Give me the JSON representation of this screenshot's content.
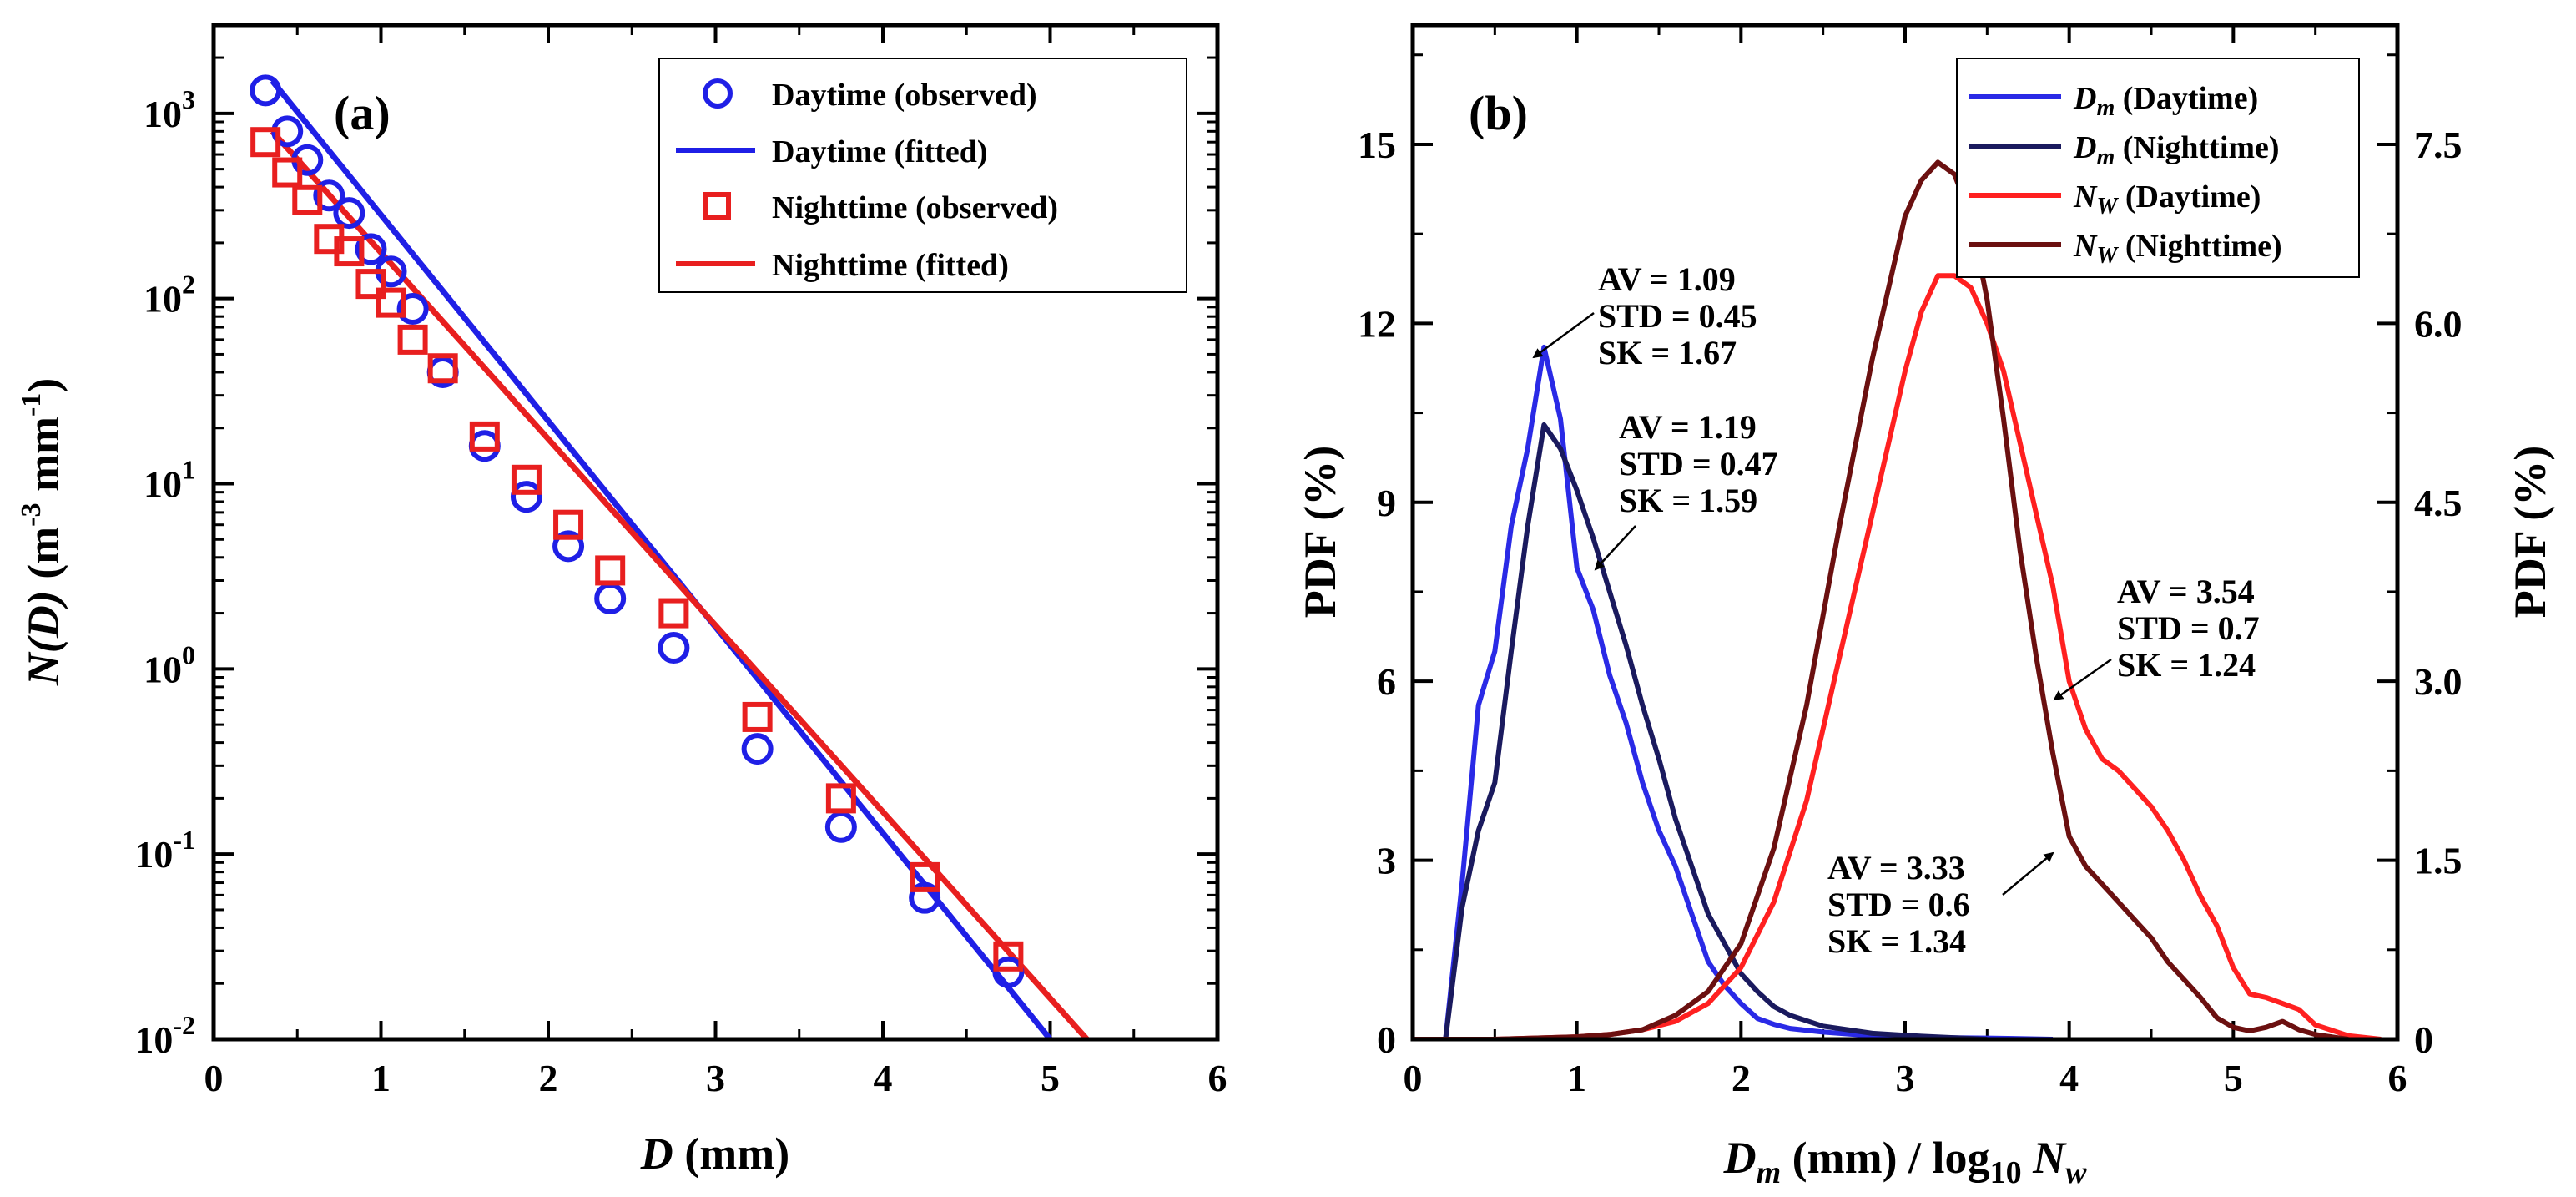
{
  "chart_data": [
    {
      "type": "scatter",
      "panel_label": "(a)",
      "xlabel_italic": "D",
      "xlabel_rest": " (mm)",
      "ylabel_italic": "N(D)",
      "ylabel_rest": " (m",
      "ylabel_sup1": "-3",
      "ylabel_mid": " mm",
      "ylabel_sup2": "-1",
      "ylabel_end": ")",
      "xlim": [
        0,
        6
      ],
      "ylim": [
        0.01,
        3000
      ],
      "yscale": "log",
      "x_ticks": [
        0,
        1,
        2,
        3,
        4,
        5,
        6
      ],
      "y_ticks": [
        {
          "base": "10",
          "exp": "3",
          "value": 1000
        },
        {
          "base": "10",
          "exp": "2",
          "value": 100
        },
        {
          "base": "10",
          "exp": "1",
          "value": 10
        },
        {
          "base": "10",
          "exp": "0",
          "value": 1
        },
        {
          "base": "10",
          "exp": "-1",
          "value": 0.1
        },
        {
          "base": "10",
          "exp": "-2",
          "value": 0.01
        }
      ],
      "legend_position": "top-right",
      "series": [
        {
          "name": "Daytime (observed)",
          "marker": "circle",
          "color": "#1f1fe6",
          "x": [
            0.31,
            0.44,
            0.56,
            0.69,
            0.81,
            0.94,
            1.06,
            1.19,
            1.37,
            1.62,
            1.87,
            2.12,
            2.37,
            2.75,
            3.25,
            3.75,
            4.25,
            4.75
          ],
          "y": [
            1330,
            800,
            560,
            360,
            290,
            185,
            140,
            88,
            40,
            16,
            8.5,
            4.6,
            2.4,
            1.3,
            0.37,
            0.14,
            0.058,
            0.023
          ]
        },
        {
          "name": "Daytime (fitted)",
          "marker": "line",
          "color": "#1f1fe6",
          "x": [
            0.35,
            5.0
          ],
          "y": [
            1500,
            0.01
          ]
        },
        {
          "name": "Nighttime (observed)",
          "marker": "square",
          "color": "#e81f1f",
          "x": [
            0.31,
            0.44,
            0.56,
            0.69,
            0.81,
            0.94,
            1.06,
            1.19,
            1.37,
            1.62,
            1.87,
            2.12,
            2.37,
            2.75,
            3.25,
            3.75,
            4.25,
            4.75
          ],
          "y": [
            700,
            480,
            340,
            210,
            180,
            120,
            95,
            60,
            42,
            18,
            10.5,
            6,
            3.4,
            2.0,
            0.55,
            0.2,
            0.075,
            0.028
          ]
        },
        {
          "name": "Nighttime (fitted)",
          "marker": "line",
          "color": "#e81f1f",
          "x": [
            0.35,
            5.22
          ],
          "y": [
            800,
            0.01
          ]
        }
      ]
    },
    {
      "type": "line",
      "panel_label": "(b)",
      "xlabel_italic": "D",
      "xlabel_sub": "m",
      "xlabel_rest": " (mm) / log",
      "xlabel_sub2": "10",
      "xlabel_italic2": " N",
      "xlabel_sub3": "w",
      "ylabel_left": "PDF (%)",
      "ylabel_right": "PDF (%)",
      "xlim": [
        0,
        6
      ],
      "ylim_left": [
        0,
        17
      ],
      "ylim_right": [
        0,
        8.5
      ],
      "x_ticks": [
        0,
        1,
        2,
        3,
        4,
        5,
        6
      ],
      "y_ticks_left": [
        0,
        3,
        6,
        9,
        12,
        15
      ],
      "y_ticks_right": [
        "0",
        "1.5",
        "3.0",
        "4.5",
        "6.0",
        "7.5"
      ],
      "legend_position": "top-right",
      "series": [
        {
          "name_italic": "D",
          "name_sub": "m",
          "name_rest": " (Daytime)",
          "color": "#2a2ae6",
          "axis": "left",
          "x": [
            0.0,
            0.2,
            0.3,
            0.4,
            0.5,
            0.6,
            0.7,
            0.8,
            0.9,
            1.0,
            1.1,
            1.2,
            1.3,
            1.4,
            1.5,
            1.6,
            1.7,
            1.8,
            1.9,
            2.0,
            2.1,
            2.2,
            2.3,
            2.5,
            2.8,
            3.1,
            3.5,
            3.9
          ],
          "y": [
            0,
            0,
            2.6,
            5.6,
            6.5,
            8.6,
            9.9,
            11.6,
            10.4,
            7.9,
            7.2,
            6.1,
            5.3,
            4.3,
            3.5,
            2.9,
            2.1,
            1.3,
            0.9,
            0.6,
            0.35,
            0.25,
            0.18,
            0.12,
            0.06,
            0.03,
            0.02,
            0.0
          ]
        },
        {
          "name_italic": "D",
          "name_sub": "m",
          "name_rest": " (Nighttime)",
          "color": "#1a1a5e",
          "axis": "left",
          "x": [
            0.0,
            0.2,
            0.3,
            0.4,
            0.5,
            0.6,
            0.7,
            0.8,
            0.9,
            1.0,
            1.1,
            1.2,
            1.3,
            1.4,
            1.5,
            1.6,
            1.7,
            1.8,
            1.9,
            2.0,
            2.1,
            2.2,
            2.3,
            2.5,
            2.8,
            3.1,
            3.5
          ],
          "y": [
            0,
            0,
            2.2,
            3.5,
            4.3,
            6.5,
            8.6,
            10.3,
            9.9,
            9.2,
            8.4,
            7.5,
            6.6,
            5.6,
            4.7,
            3.7,
            2.9,
            2.1,
            1.6,
            1.1,
            0.8,
            0.55,
            0.4,
            0.22,
            0.1,
            0.05,
            0.0
          ]
        },
        {
          "name_italic": "N",
          "name_sub": "W",
          "name_rest": " (Daytime)",
          "color": "#ff2020",
          "axis": "right",
          "x": [
            0.0,
            0.5,
            1.0,
            1.2,
            1.4,
            1.6,
            1.8,
            2.0,
            2.2,
            2.4,
            2.6,
            2.8,
            3.0,
            3.1,
            3.2,
            3.3,
            3.4,
            3.5,
            3.6,
            3.7,
            3.8,
            3.9,
            4.0,
            4.1,
            4.2,
            4.3,
            4.4,
            4.5,
            4.6,
            4.7,
            4.8,
            4.9,
            5.0,
            5.1,
            5.2,
            5.3,
            5.4,
            5.5,
            5.7,
            5.9
          ],
          "y": [
            0,
            0,
            0.02,
            0.04,
            0.08,
            0.15,
            0.3,
            0.6,
            1.15,
            2.0,
            3.2,
            4.4,
            5.6,
            6.1,
            6.4,
            6.4,
            6.3,
            6.0,
            5.6,
            5.0,
            4.4,
            3.8,
            3.0,
            2.6,
            2.35,
            2.25,
            2.1,
            1.95,
            1.75,
            1.5,
            1.2,
            0.95,
            0.6,
            0.38,
            0.35,
            0.3,
            0.25,
            0.12,
            0.03,
            0.0
          ]
        },
        {
          "name_italic": "N",
          "name_sub": "W",
          "name_rest": " (Nighttime)",
          "color": "#6b1010",
          "axis": "right",
          "x": [
            0.0,
            0.5,
            1.0,
            1.2,
            1.4,
            1.6,
            1.8,
            2.0,
            2.2,
            2.4,
            2.6,
            2.8,
            3.0,
            3.1,
            3.2,
            3.3,
            3.4,
            3.5,
            3.6,
            3.7,
            3.8,
            3.9,
            4.0,
            4.1,
            4.2,
            4.3,
            4.4,
            4.5,
            4.6,
            4.7,
            4.8,
            4.9,
            5.0,
            5.1,
            5.2,
            5.3,
            5.4,
            5.5,
            5.7
          ],
          "y": [
            0,
            0,
            0.02,
            0.04,
            0.08,
            0.2,
            0.4,
            0.8,
            1.6,
            2.8,
            4.3,
            5.7,
            6.9,
            7.2,
            7.35,
            7.25,
            6.9,
            6.2,
            5.2,
            4.1,
            3.2,
            2.4,
            1.7,
            1.45,
            1.3,
            1.15,
            1.0,
            0.85,
            0.65,
            0.5,
            0.35,
            0.18,
            0.1,
            0.07,
            0.1,
            0.15,
            0.08,
            0.04,
            0.0
          ]
        }
      ],
      "annotations": [
        {
          "lines": [
            "AV = 1.09",
            "STD = 0.45",
            "SK = 1.67"
          ]
        },
        {
          "lines": [
            "AV = 1.19",
            "STD = 0.47",
            "SK = 1.59"
          ]
        },
        {
          "lines": [
            "AV = 3.54",
            "STD = 0.7",
            "SK = 1.24"
          ]
        },
        {
          "lines": [
            "AV = 3.33",
            "STD = 0.6",
            "SK = 1.34"
          ]
        }
      ]
    }
  ]
}
